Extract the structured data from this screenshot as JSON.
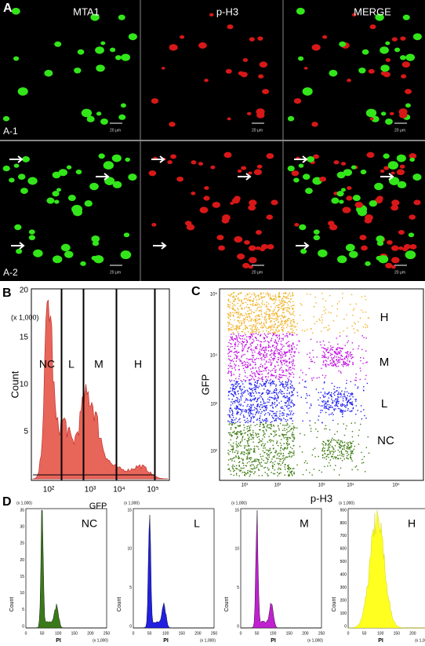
{
  "panel_a": {
    "label": "A",
    "columns": [
      "MTA1",
      "p-H3",
      "MERGE"
    ],
    "rows": [
      "A-1",
      "A-2"
    ],
    "scale_bar": "20 μm"
  },
  "panel_b": {
    "label": "B",
    "y_unit": "(x 1,000)",
    "y_axis": "Count",
    "x_axis": "GFP",
    "y_ticks": [
      "20",
      "15",
      "10",
      "5"
    ],
    "x_ticks": [
      "10²",
      "10³",
      "10⁴",
      "10⁵"
    ],
    "gates": [
      "NC",
      "L",
      "M",
      "H"
    ]
  },
  "panel_c": {
    "label": "C",
    "y_axis": "GFP",
    "x_axis": "p-H3",
    "gates": [
      "H",
      "M",
      "L",
      "NC"
    ],
    "x_ticks": [
      "10¹",
      "10²",
      "10³",
      "10⁴",
      "10⁵"
    ],
    "y_ticks": [
      "10⁵",
      "10⁴",
      "10³",
      "10²"
    ]
  },
  "panel_d": {
    "label": "D",
    "y_axis": "Count",
    "x_axis": "PI",
    "unit": "(x 1,000)",
    "x_ticks": [
      "0",
      "50",
      "100",
      "150",
      "200",
      "250"
    ],
    "plots": [
      {
        "name": "NC",
        "y_ticks": [
          "35",
          "30",
          "25",
          "20",
          "15",
          "10",
          "5",
          "0"
        ]
      },
      {
        "name": "L",
        "y_ticks": [
          "15",
          "10",
          "5",
          "0"
        ]
      },
      {
        "name": "M",
        "y_ticks": [
          "15",
          "10",
          "5",
          "0"
        ]
      },
      {
        "name": "H",
        "y_ticks": [
          "900",
          "800",
          "700",
          "600",
          "500",
          "400",
          "300",
          "200",
          "100",
          "0"
        ]
      }
    ]
  }
}
